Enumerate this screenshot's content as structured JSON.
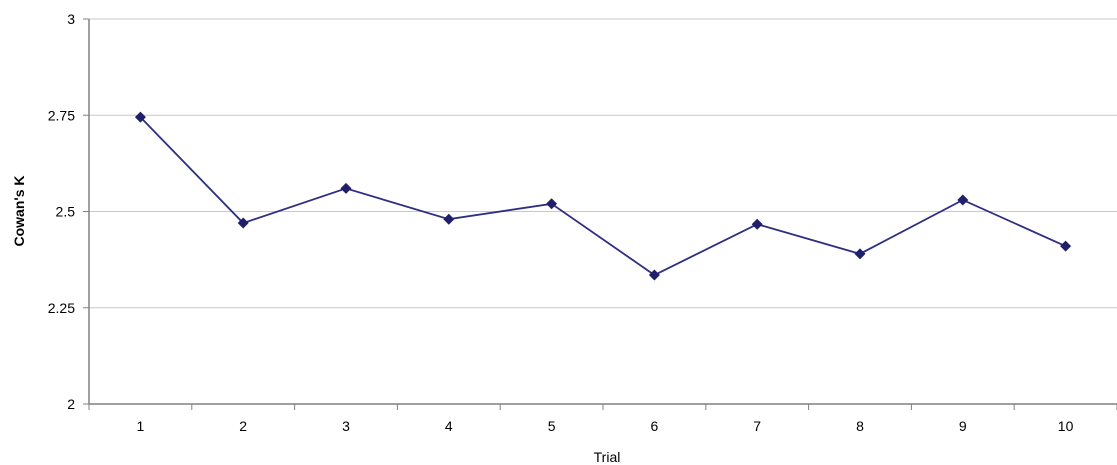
{
  "chart_data": {
    "type": "line",
    "title": "",
    "xlabel": "Trial",
    "ylabel": "Cowan's K",
    "categories": [
      "1",
      "2",
      "3",
      "4",
      "5",
      "6",
      "7",
      "8",
      "9",
      "10"
    ],
    "series": [
      {
        "values": [
          2.745,
          2.47,
          2.56,
          2.48,
          2.52,
          2.335,
          2.467,
          2.39,
          2.53,
          2.41
        ]
      }
    ],
    "ylim": [
      2,
      3
    ],
    "yticks": [
      "2",
      "2.25",
      "2.5",
      "2.75",
      "3"
    ],
    "grid": "horizontal",
    "legend": "none",
    "colors": {
      "line": "#2e2e82",
      "marker": "#1f1f6b",
      "grid": "#c8c8c8",
      "axis": "#808080"
    }
  }
}
